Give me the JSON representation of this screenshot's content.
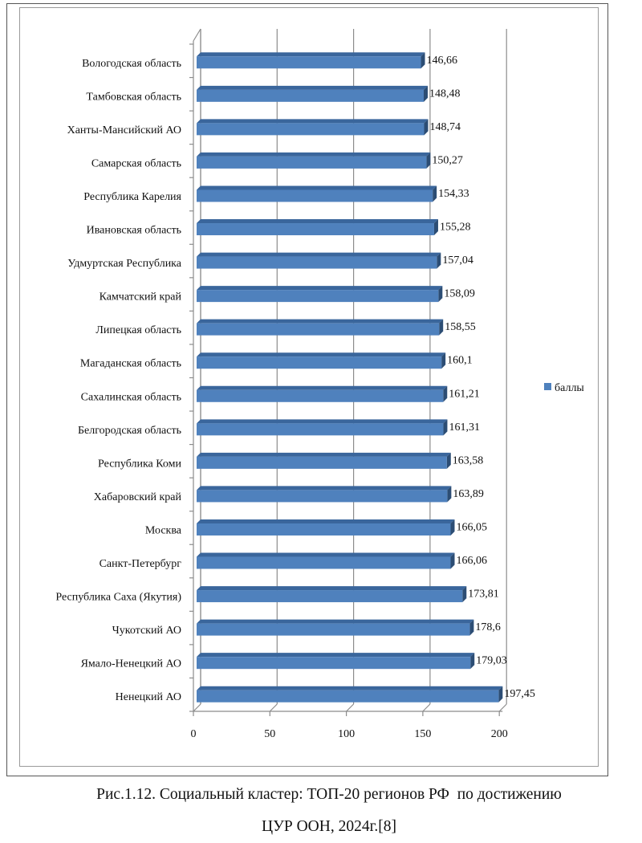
{
  "chart_data": {
    "type": "bar",
    "orientation": "horizontal",
    "style": "3d-clustered",
    "categories": [
      "Вологодская область",
      "Тамбовская область",
      "Ханты-Мансийский АО",
      "Самарская область",
      "Республика Карелия",
      "Ивановская область",
      "Удмуртская Республика",
      "Камчатский край",
      "Липецкая область",
      "Магаданская область",
      "Сахалинская область",
      "Белгородская область",
      "Республика Коми",
      "Хабаровский край",
      "Москва",
      "Санкт-Петербург",
      "Республика Саха (Якутия)",
      "Чукотский АО",
      "Ямало-Ненецкий АО",
      "Ненецкий АО"
    ],
    "series": [
      {
        "name": "баллы",
        "color": "#4f81bd",
        "values": [
          146.66,
          148.48,
          148.74,
          150.27,
          154.33,
          155.28,
          157.04,
          158.09,
          158.55,
          160.1,
          161.21,
          161.31,
          163.58,
          163.89,
          166.05,
          166.06,
          173.81,
          178.6,
          179.03,
          197.45
        ],
        "data_labels": [
          "146,66",
          "148,48",
          "148,74",
          "150,27",
          "154,33",
          "155,28",
          "157,04",
          "158,09",
          "158,55",
          "160,1",
          "161,21",
          "161,31",
          "163,58",
          "163,89",
          "166,05",
          "166,06",
          "173,81",
          "178,6",
          "179,03",
          "197,45"
        ]
      }
    ],
    "title": "",
    "xlabel": "",
    "ylabel": "",
    "xlim": [
      0,
      200
    ],
    "xticks": [
      0,
      50,
      100,
      150,
      200
    ],
    "xtick_labels": [
      "0",
      "50",
      "100",
      "150",
      "200"
    ],
    "grid": true,
    "legend": {
      "position": "right",
      "entries": [
        "баллы"
      ]
    }
  },
  "caption": {
    "line1": "Рис.1.12. Социальный кластер: ТОП-20 регионов РФ  по достижению",
    "line2": "ЦУР ООН, 2024г.[8]"
  },
  "colors": {
    "bar_front": "#4f81bd",
    "bar_top": "#3a669c",
    "bar_side": "#2c4d74",
    "axis": "#8c8c8c"
  }
}
